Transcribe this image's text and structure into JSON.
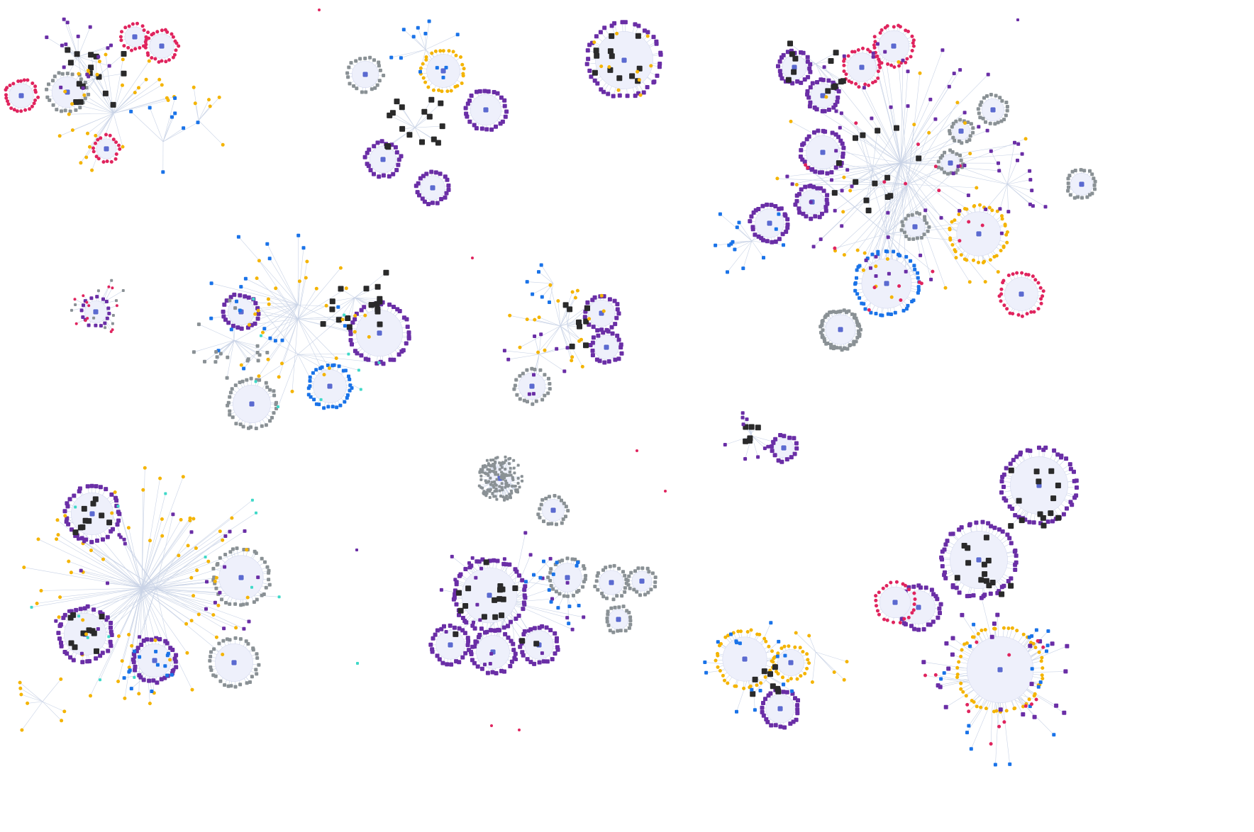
{
  "graph": {
    "type": "force-directed-network",
    "background": "#ffffff",
    "edge_color": "#c9d3e6",
    "node_types": [
      {
        "id": "purple",
        "color": "#6a2ea6",
        "icon": "document-icon"
      },
      {
        "id": "gray",
        "color": "#8a9195",
        "icon": "document-icon"
      },
      {
        "id": "red",
        "color": "#e0245e",
        "icon": "tag-icon"
      },
      {
        "id": "yellow",
        "color": "#f4b400",
        "icon": "dot-icon"
      },
      {
        "id": "blue",
        "color": "#1a73e8",
        "icon": "thumbs-up-icon"
      },
      {
        "id": "cyan",
        "color": "#3fd9c8",
        "icon": "leaf-icon"
      },
      {
        "id": "black",
        "color": "#2a2a2a",
        "icon": "book-icon"
      },
      {
        "id": "hub",
        "color": "#5b6ad0",
        "icon": "circle-node-icon"
      }
    ],
    "cluster_count": 14
  }
}
